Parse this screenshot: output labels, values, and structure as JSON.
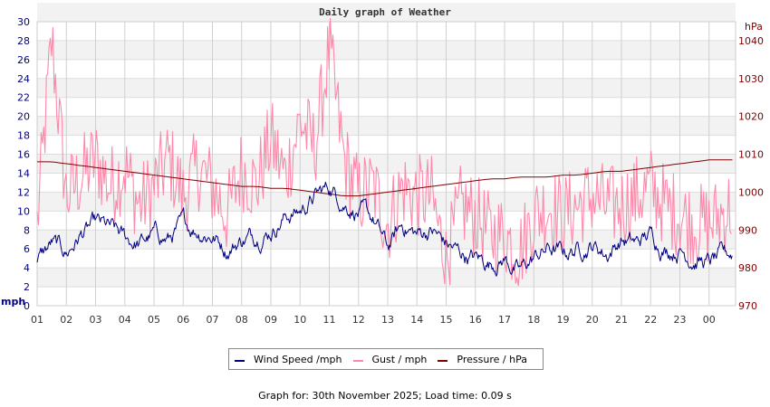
{
  "chart_data": {
    "type": "line",
    "title": "Daily graph of Weather",
    "xlabel": "",
    "ylabel_left": "mph",
    "ylabel_right": "hPa",
    "x_tick_labels": [
      "01",
      "02",
      "03",
      "04",
      "05",
      "06",
      "07",
      "08",
      "09",
      "10",
      "11",
      "12",
      "13",
      "14",
      "15",
      "16",
      "17",
      "18",
      "19",
      "20",
      "21",
      "22",
      "23",
      "00"
    ],
    "y_left_ticks": [
      0,
      2,
      4,
      6,
      8,
      10,
      12,
      14,
      16,
      18,
      20,
      22,
      24,
      26,
      28,
      30
    ],
    "y_left_range": [
      0,
      30
    ],
    "y_right_ticks": [
      970,
      980,
      990,
      1000,
      1010,
      1020,
      1030,
      1040
    ],
    "y_right_range": [
      970,
      1045
    ],
    "grid": true,
    "legend_position": "bottom",
    "hours": [
      1,
      1.5,
      2,
      2.5,
      3,
      3.5,
      4,
      4.5,
      5,
      5.5,
      6,
      6.5,
      7,
      7.5,
      8,
      8.5,
      9,
      9.5,
      10,
      10.5,
      11,
      11.5,
      12,
      12.5,
      13,
      13.5,
      14,
      14.5,
      15,
      15.5,
      16,
      16.5,
      17,
      17.5,
      18,
      18.5,
      19,
      19.5,
      20,
      20.5,
      21,
      21.5,
      22,
      22.5,
      23,
      23.5,
      24,
      24.8
    ],
    "series": [
      {
        "name": "Wind Speed /mph",
        "color": "#000080",
        "axis": "left",
        "values": [
          4.5,
          6.5,
          5.5,
          7.5,
          8.5,
          8.0,
          7.0,
          6.5,
          7.5,
          7.0,
          8.5,
          8.0,
          7.5,
          6.0,
          7.0,
          7.5,
          8.0,
          9.5,
          10.0,
          11.5,
          12.5,
          11.0,
          10.0,
          9.0,
          6.0,
          8.5,
          7.5,
          8.0,
          6.5,
          5.5,
          5.0,
          4.5,
          5.0,
          3.5,
          5.0,
          6.0,
          5.5,
          6.0,
          6.5,
          5.5,
          7.0,
          6.5,
          7.5,
          6.0,
          6.0,
          5.0,
          4.5,
          5.5
        ]
      },
      {
        "name": "Gust / mph",
        "color": "#ff88aa",
        "axis": "left",
        "values": [
          9,
          28.5,
          12,
          14,
          16,
          13,
          15,
          11,
          13,
          16,
          12,
          15,
          13,
          10,
          15,
          13,
          18,
          14,
          20,
          17,
          27.5,
          16,
          12,
          13,
          9,
          13,
          12,
          12,
          5,
          11,
          10,
          8,
          8,
          6,
          10,
          11,
          10,
          11,
          12,
          11,
          11,
          12,
          13,
          11,
          10,
          9,
          9,
          11
        ]
      },
      {
        "name": "Pressure / hPa",
        "color": "#800000",
        "axis": "right",
        "values": [
          1008,
          1008,
          1007.5,
          1007,
          1006.5,
          1006,
          1005.5,
          1005,
          1004.5,
          1004,
          1003.5,
          1003,
          1002.5,
          1002,
          1001.5,
          1001.5,
          1001,
          1001,
          1000.5,
          1000,
          999.5,
          999,
          999,
          999.5,
          1000,
          1000.5,
          1001,
          1001.5,
          1002,
          1002.5,
          1003,
          1003.5,
          1003.5,
          1004,
          1004,
          1004,
          1004.5,
          1004.5,
          1005,
          1005.5,
          1005.5,
          1006,
          1006.5,
          1007,
          1007.5,
          1008,
          1008.5,
          1008.5
        ]
      }
    ]
  },
  "legend": {
    "items": [
      {
        "label": "Wind Speed /mph",
        "color": "#000080"
      },
      {
        "label": "Gust / mph",
        "color": "#ff88aa"
      },
      {
        "label": "Pressure / hPa",
        "color": "#800000"
      }
    ]
  },
  "footer": {
    "text": "Graph for: 30th November 2025; Load time: 0.09 s"
  }
}
